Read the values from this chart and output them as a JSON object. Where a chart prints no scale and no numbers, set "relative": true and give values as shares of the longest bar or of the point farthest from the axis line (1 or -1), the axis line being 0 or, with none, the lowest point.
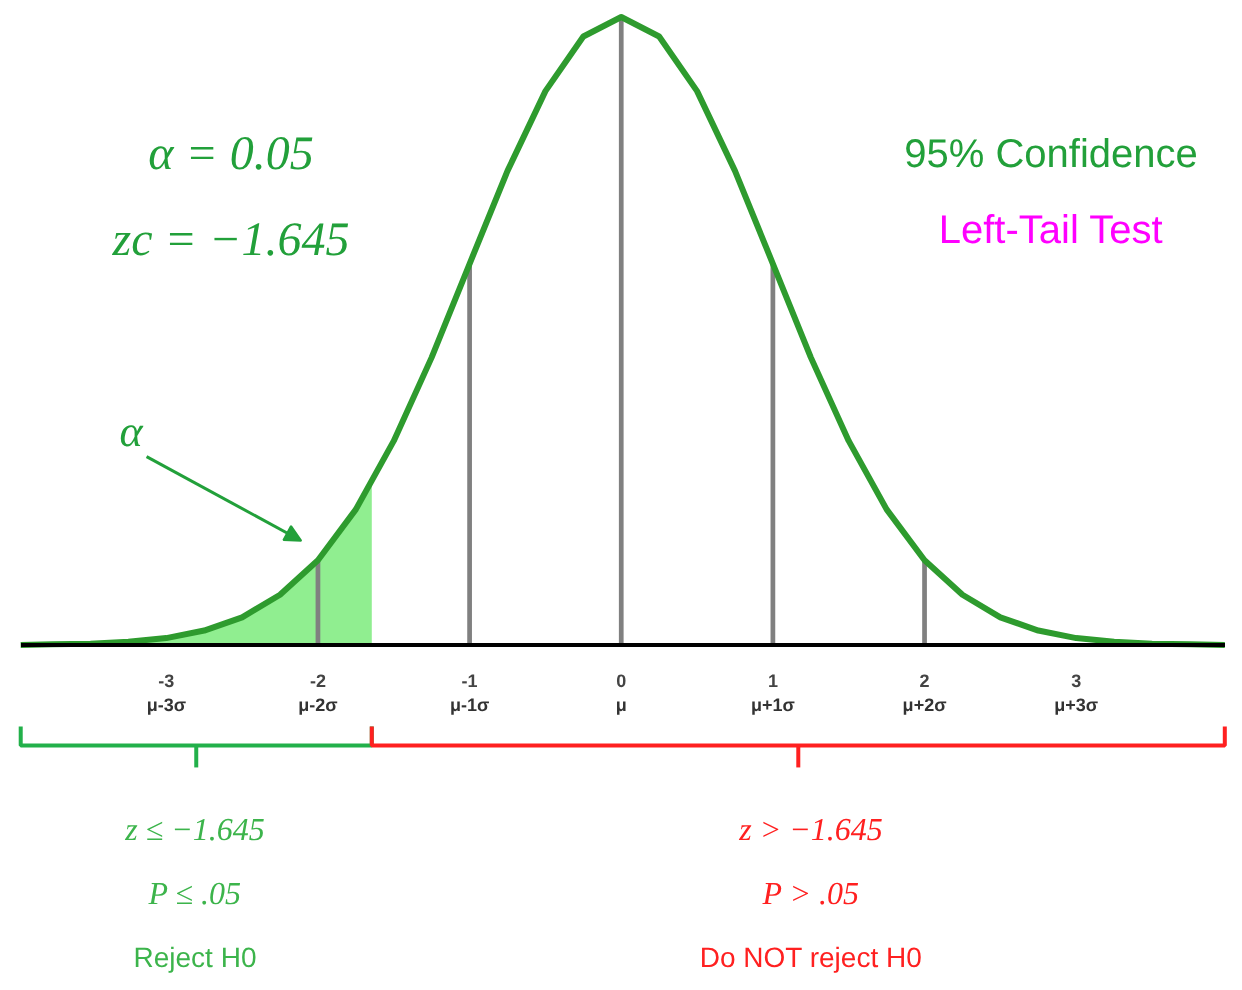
{
  "chart_data": {
    "type": "line",
    "relative": true,
    "xlim": [
      -3.96,
      3.98
    ],
    "xticks": [
      -3,
      -2,
      -1,
      0,
      1,
      2,
      3
    ],
    "series": [
      {
        "type": "area",
        "color": "#90ee90",
        "x": [
          -3.96,
          -3.75,
          -3.5,
          -3.25,
          -3,
          -2.75,
          -2.5,
          -2.25,
          -2,
          -1.75,
          -1.645
        ],
        "values": [
          0,
          0.001,
          0.002,
          0.005,
          0.011,
          0.023,
          0.044,
          0.08,
          0.135,
          0.216,
          0.258
        ]
      },
      {
        "type": "bar",
        "color": "#808080",
        "x": [
          -2,
          -1,
          0,
          1,
          2
        ],
        "values": [
          0.135,
          0.607,
          1,
          0.607,
          0.135
        ]
      },
      {
        "color": "#2e9b2e",
        "x": [
          -3.96,
          -3.75,
          -3.5,
          -3.25,
          -3,
          -2.75,
          -2.5,
          -2.25,
          -2,
          -1.75,
          -1.5,
          -1.25,
          -1,
          -0.75,
          -0.5,
          -0.25,
          0,
          0.25,
          0.5,
          0.75,
          1,
          1.25,
          1.5,
          1.75,
          2,
          2.25,
          2.5,
          2.75,
          3,
          3.25,
          3.5,
          3.75,
          3.98
        ],
        "values": [
          0,
          0.001,
          0.002,
          0.005,
          0.011,
          0.023,
          0.044,
          0.08,
          0.135,
          0.216,
          0.325,
          0.458,
          0.607,
          0.755,
          0.882,
          0.969,
          1,
          0.969,
          0.882,
          0.755,
          0.607,
          0.458,
          0.325,
          0.216,
          0.135,
          0.08,
          0.044,
          0.023,
          0.011,
          0.005,
          0.002,
          0.001,
          0
        ]
      }
    ],
    "annotations": [
      "α = 0.05",
      "zc = −1.645",
      "95% Confidence",
      "Left-Tail Test",
      "α",
      "z ≤ −1.645",
      "P ≤ .05",
      "Reject H0",
      "z > −1.645",
      "P > .05",
      "Do NOT reject H0",
      "μ-3σ",
      "μ-2σ",
      "μ-1σ",
      "μ",
      "μ+1σ",
      "μ+2σ",
      "μ+3σ"
    ]
  }
}
